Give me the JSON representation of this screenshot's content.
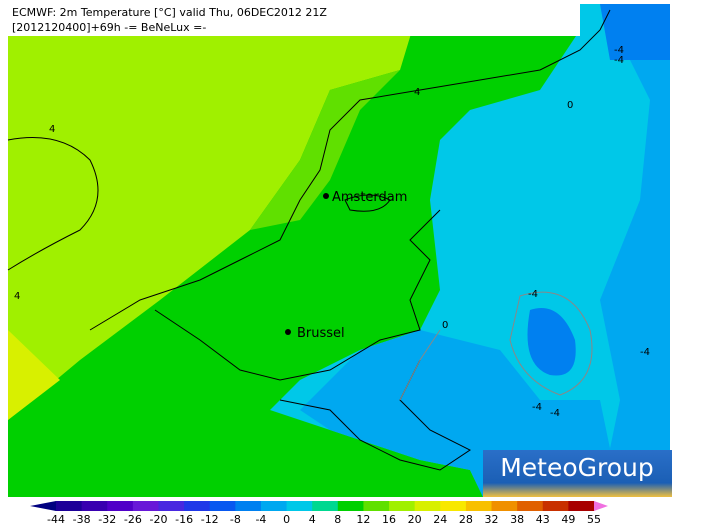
{
  "header": {
    "line1": "ECMWF: 2m Temperature [°C] valid Thu, 06DEC2012 21Z",
    "line2": "[2012120400]+69h -= BeNeLux =-"
  },
  "cities": [
    "Amsterdam",
    "Brussel"
  ],
  "contour_labels": [
    "4",
    "4",
    "4",
    "-4",
    "-4",
    "0",
    "0",
    "-4",
    "-4",
    "-4",
    "-4"
  ],
  "logo": "MeteoGroup",
  "colorbar": {
    "ticks": [
      -44,
      -38,
      -32,
      -26,
      -20,
      -16,
      -12,
      -8,
      -4,
      0,
      4,
      8,
      12,
      16,
      20,
      24,
      28,
      32,
      38,
      43,
      49,
      55
    ],
    "colors": [
      "#000080",
      "#1c0098",
      "#3800b0",
      "#5000c8",
      "#6818d8",
      "#4828e0",
      "#2038e8",
      "#0858f0",
      "#0080f0",
      "#00a8f0",
      "#00c8e8",
      "#00d890",
      "#00d000",
      "#60e000",
      "#a0f000",
      "#d8f000",
      "#f8e800",
      "#f8c000",
      "#f09000",
      "#e06000",
      "#c83000",
      "#a80000",
      "#f070e0"
    ]
  }
}
